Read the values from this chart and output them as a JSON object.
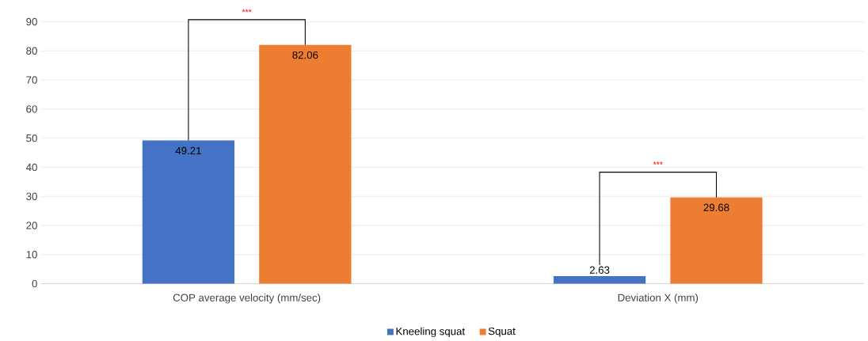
{
  "chart_data": {
    "type": "bar",
    "categories": [
      "COP average velocity (mm/sec)",
      "Deviation X (mm)"
    ],
    "series": [
      {
        "name": "Kneeling squat",
        "color": "#4472c4",
        "values": [
          49.21,
          2.63
        ]
      },
      {
        "name": "Squat",
        "color": "#ed7d31",
        "values": [
          82.06,
          29.68
        ]
      }
    ],
    "ylim": [
      0,
      90
    ],
    "yticks": [
      0,
      10,
      20,
      30,
      40,
      50,
      60,
      70,
      80,
      90
    ],
    "grid": "y",
    "legend": "bottom",
    "data_labels": true,
    "annotations": [
      "***",
      "***"
    ]
  }
}
